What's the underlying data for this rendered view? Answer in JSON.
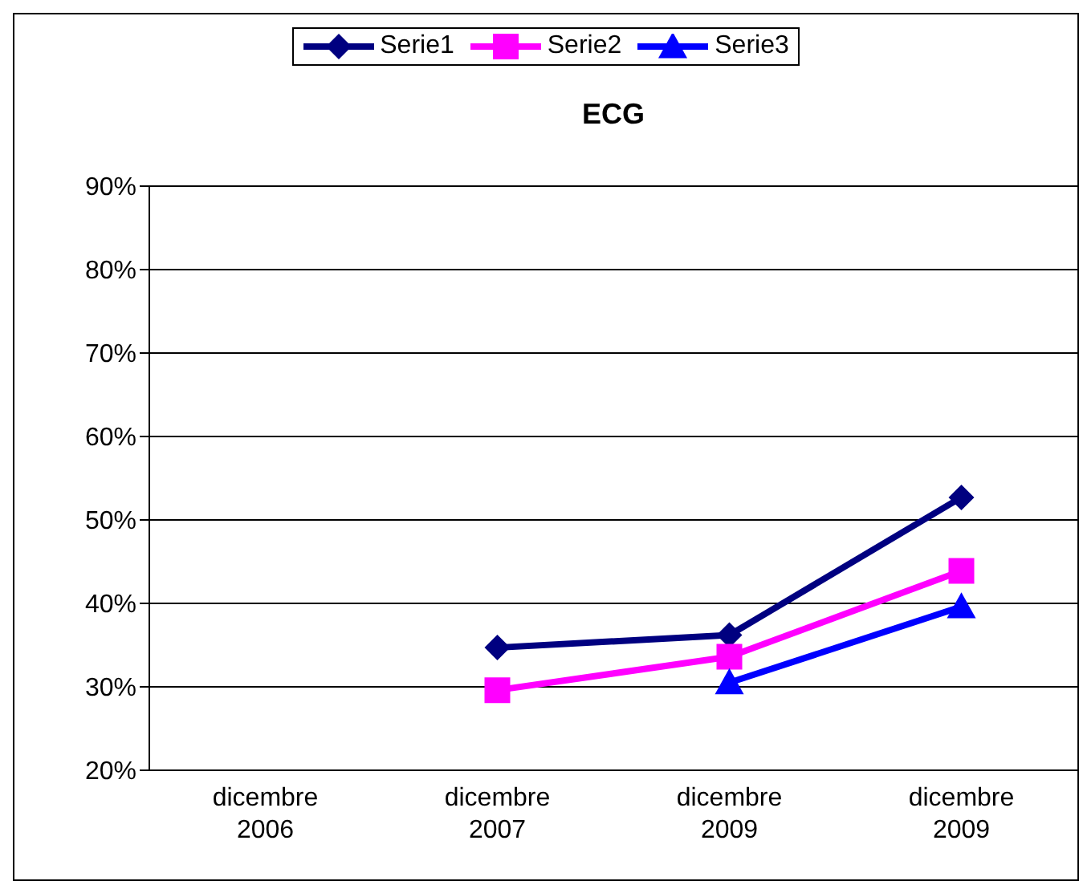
{
  "chart_data": {
    "type": "line",
    "title": "ECG",
    "categories": [
      "dicembre 2006",
      "dicembre 2007",
      "dicembre 2009",
      "dicembre 2009"
    ],
    "series": [
      {
        "name": "Serie1",
        "color": "#000080",
        "marker": "diamond",
        "values": [
          null,
          34.7,
          36.2,
          52.7
        ]
      },
      {
        "name": "Serie2",
        "color": "#ff00ff",
        "marker": "square",
        "values": [
          null,
          29.6,
          33.6,
          43.9
        ]
      },
      {
        "name": "Serie3",
        "color": "#0000ff",
        "marker": "triangle",
        "values": [
          null,
          null,
          30.5,
          39.6
        ]
      }
    ],
    "ylim": [
      20,
      90
    ],
    "yticks": [
      {
        "value": 20,
        "label": "20%"
      },
      {
        "value": 30,
        "label": "30%"
      },
      {
        "value": 40,
        "label": "40%"
      },
      {
        "value": 50,
        "label": "50%"
      },
      {
        "value": 60,
        "label": "60%"
      },
      {
        "value": 70,
        "label": "70%"
      },
      {
        "value": 80,
        "label": "80%"
      },
      {
        "value": 90,
        "label": "90%"
      }
    ],
    "grid": "y",
    "legend": "top",
    "line_style": "solid"
  }
}
